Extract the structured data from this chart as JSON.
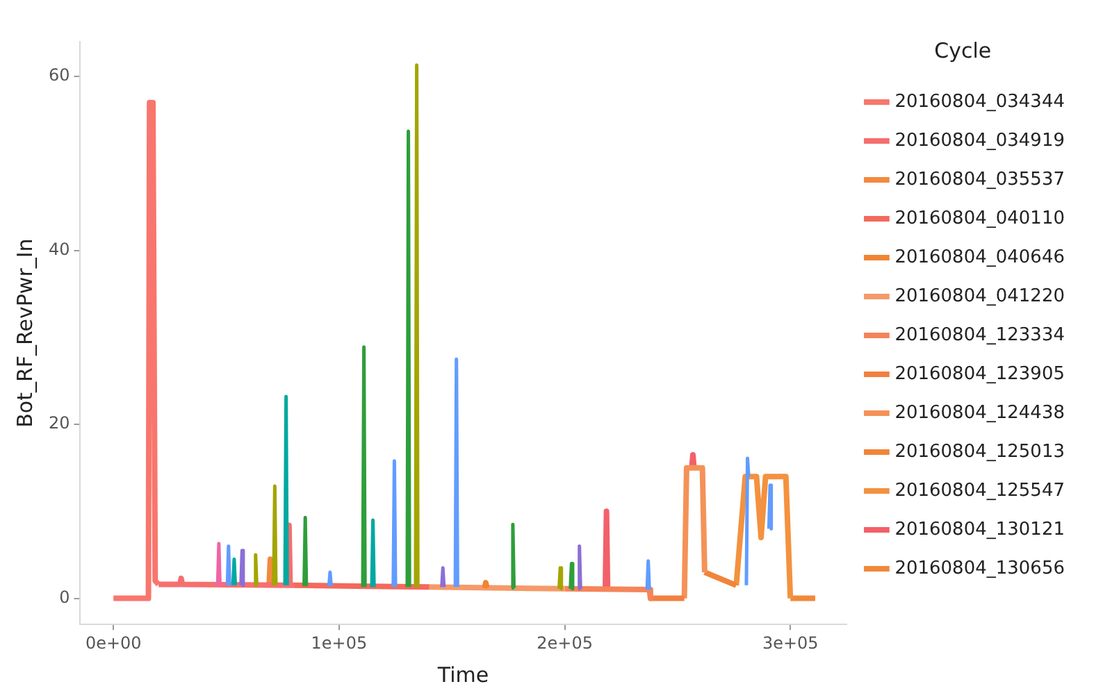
{
  "chart_data": {
    "type": "line",
    "xlabel": "Time",
    "ylabel": "Bot_RF_RevPwr_In",
    "legend_title": "Cycle",
    "legend": "right",
    "grid": false,
    "xlim": [
      -15000,
      325000
    ],
    "ylim": [
      -3,
      64
    ],
    "xticks": [
      {
        "value": 0,
        "label": "0e+00"
      },
      {
        "value": 100000,
        "label": "1e+05"
      },
      {
        "value": 200000,
        "label": "2e+05"
      },
      {
        "value": 300000,
        "label": "3e+05"
      }
    ],
    "yticks": [
      0,
      20,
      40,
      60
    ],
    "series": [
      {
        "color": "#619cff",
        "x": [
          50500,
          51000,
          51500,
          51600,
          95500,
          96000,
          96500,
          96600,
          124000,
          124500,
          125000,
          125100,
          151500,
          152000,
          152500,
          152600,
          236500,
          237000,
          237500,
          237600,
          280500,
          281000,
          281500,
          281600,
          290500,
          291000,
          291500
        ],
        "values": [
          1.5,
          6,
          1.5,
          null,
          1.4,
          3,
          1.4,
          null,
          1.3,
          15.8,
          1.3,
          null,
          1.3,
          27.5,
          1.3,
          null,
          1,
          4.3,
          1,
          null,
          1.5,
          16.1,
          14,
          null,
          8,
          13,
          8
        ]
      },
      {
        "color": "#2e9e3a",
        "x": [
          84500,
          85000,
          85500,
          85600,
          110500,
          111000,
          111500,
          111600,
          130200,
          130700,
          131200,
          131300,
          176500,
          177000,
          177500,
          177600,
          202500,
          203000,
          203500
        ],
        "values": [
          1.4,
          9.3,
          1.4,
          null,
          1.3,
          28.9,
          1.3,
          null,
          1.3,
          53.7,
          1.3,
          null,
          1.2,
          8.5,
          1.2,
          null,
          1.1,
          4,
          1.1
        ]
      },
      {
        "color": "#a3a500",
        "x": [
          62500,
          63000,
          63500,
          63600,
          71000,
          71500,
          72000,
          72100,
          133900,
          134400,
          134900,
          135000,
          197500,
          198000,
          198500
        ],
        "values": [
          1.5,
          5,
          1.5,
          null,
          1.5,
          12.9,
          1.5,
          null,
          1.3,
          61.3,
          1.3,
          null,
          1.1,
          3.5,
          1.1
        ]
      },
      {
        "color": "#00a9a0",
        "x": [
          53000,
          53500,
          54000,
          54100,
          76000,
          76500,
          77000,
          77100,
          114500,
          115000,
          115500
        ],
        "values": [
          1.5,
          4.5,
          1.5,
          null,
          1.5,
          23.2,
          1.5,
          null,
          1.3,
          9,
          1.3
        ]
      },
      {
        "color": "#8b6fd6",
        "x": [
          56500,
          57000,
          57500,
          57600,
          145500,
          146000,
          146500,
          146600,
          206000,
          206500,
          207000
        ],
        "values": [
          1.5,
          5.5,
          1.5,
          null,
          1.3,
          3.5,
          1.3,
          null,
          1.1,
          6,
          1.1
        ]
      },
      {
        "color": "#f064a8",
        "x": [
          46200,
          46700,
          47200
        ],
        "values": [
          1.5,
          6.3,
          1.5
        ]
      },
      {
        "name": "20160804_034344",
        "color": "#f8766d",
        "x": [
          0,
          15500,
          16000,
          17500,
          18500,
          20000
        ],
        "values": [
          0,
          0,
          57,
          57,
          2,
          1.6
        ]
      },
      {
        "name": "20160804_034919",
        "color": "#f66f6f",
        "x": [
          20000,
          29500,
          30000,
          30500,
          77300,
          77800,
          78300,
          80000
        ],
        "values": [
          1.6,
          1.6,
          2.3,
          1.6,
          1.5,
          8.4,
          1.5,
          1.5
        ]
      },
      {
        "name": "20160804_035537",
        "color": "#f28a3f",
        "x": [
          69000,
          69500,
          70000
        ],
        "values": [
          1.5,
          4.5,
          1.5
        ]
      },
      {
        "name": "20160804_040110",
        "color": "#f4695c",
        "x": [
          80000,
          140000
        ],
        "values": [
          1.5,
          1.3
        ]
      },
      {
        "name": "20160804_040646",
        "color": "#ef8533",
        "x": [
          164500,
          165000,
          165500
        ],
        "values": [
          1.2,
          1.8,
          1.2
        ]
      },
      {
        "name": "20160804_041220",
        "color": "#f59a6a",
        "x": [
          140000,
          200000
        ],
        "values": [
          1.3,
          1.1
        ]
      },
      {
        "name": "20160804_123334",
        "color": "#f5845a",
        "x": [
          200000,
          237500,
          238000
        ],
        "values": [
          1.1,
          1,
          0
        ]
      },
      {
        "name": "20160804_123905",
        "color": "#f2803f",
        "x": [
          238000,
          253000
        ],
        "values": [
          0,
          0
        ]
      },
      {
        "name": "20160804_124438",
        "color": "#f49258",
        "x": [
          253000,
          254000,
          261000,
          262000
        ],
        "values": [
          0,
          15,
          15,
          3
        ]
      },
      {
        "name": "20160804_125013",
        "color": "#f1843a",
        "x": [
          262000,
          276000
        ],
        "values": [
          3,
          1.5
        ]
      },
      {
        "name": "20160804_125547",
        "color": "#f3923f",
        "x": [
          276000,
          280000,
          285000,
          287000,
          289000,
          298000,
          300000
        ],
        "values": [
          1.5,
          14,
          14,
          7,
          14,
          14,
          0
        ]
      },
      {
        "name": "20160804_130121",
        "color": "#f3606a",
        "x": [
          218000,
          218500,
          219000,
          219100,
          256300,
          256800,
          257300
        ],
        "values": [
          1.1,
          10,
          1.1,
          null,
          15,
          16.5,
          15
        ]
      },
      {
        "name": "20160804_130656",
        "color": "#f0893a",
        "x": [
          300000,
          311000
        ],
        "values": [
          0,
          0
        ]
      }
    ]
  }
}
